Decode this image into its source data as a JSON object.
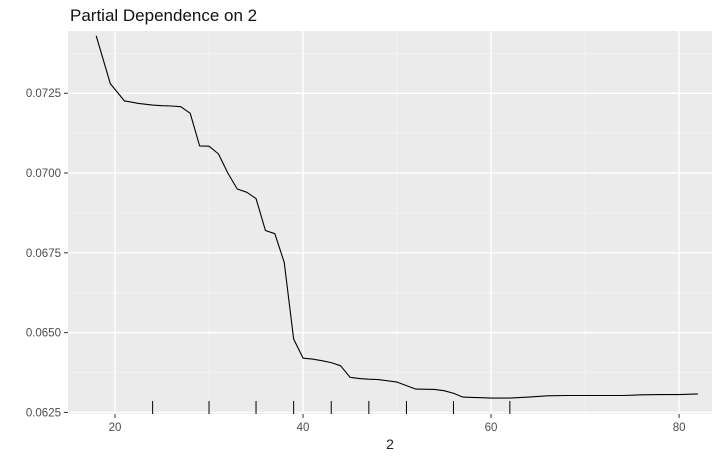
{
  "chart_data": {
    "type": "line",
    "title": "Partial Dependence on 2",
    "xlabel": "2",
    "ylabel": "",
    "xlim": [
      15,
      83.5
    ],
    "ylim": [
      0.06245,
      0.07445
    ],
    "x_ticks": [
      20,
      40,
      60,
      80
    ],
    "y_ticks": [
      0.0625,
      0.065,
      0.0675,
      0.07,
      0.0725
    ],
    "y_tick_labels": [
      "0.0625",
      "0.0650",
      "0.0675",
      "0.0700",
      "0.0725"
    ],
    "grid": true,
    "rug_x": [
      24,
      30,
      35,
      39,
      43,
      47,
      51,
      56,
      62
    ],
    "series": [
      {
        "x": [
          18,
          19.5,
          21,
          22.5,
          24,
          25,
          26,
          27,
          28,
          29,
          30,
          31,
          32,
          33,
          34,
          35,
          36,
          37,
          38,
          39,
          40,
          41,
          42,
          43,
          44,
          45,
          46,
          47,
          48,
          50,
          52,
          54,
          55,
          56,
          57,
          58,
          59,
          60,
          62,
          64,
          66,
          68,
          70,
          72,
          74,
          76,
          78,
          80,
          82
        ],
        "y": [
          0.0743,
          0.0728,
          0.07226,
          0.07218,
          0.07213,
          0.07211,
          0.0721,
          0.07208,
          0.07187,
          0.07085,
          0.07084,
          0.0706,
          0.07,
          0.0695,
          0.0694,
          0.0692,
          0.0682,
          0.0681,
          0.0672,
          0.0648,
          0.0642,
          0.06417,
          0.06412,
          0.06406,
          0.06396,
          0.0636,
          0.06356,
          0.06354,
          0.06353,
          0.06345,
          0.06323,
          0.06322,
          0.06318,
          0.0631,
          0.06298,
          0.06297,
          0.06296,
          0.06295,
          0.06295,
          0.06298,
          0.06302,
          0.06303,
          0.06303,
          0.06303,
          0.06303,
          0.06305,
          0.06306,
          0.06306,
          0.06308
        ]
      }
    ]
  }
}
